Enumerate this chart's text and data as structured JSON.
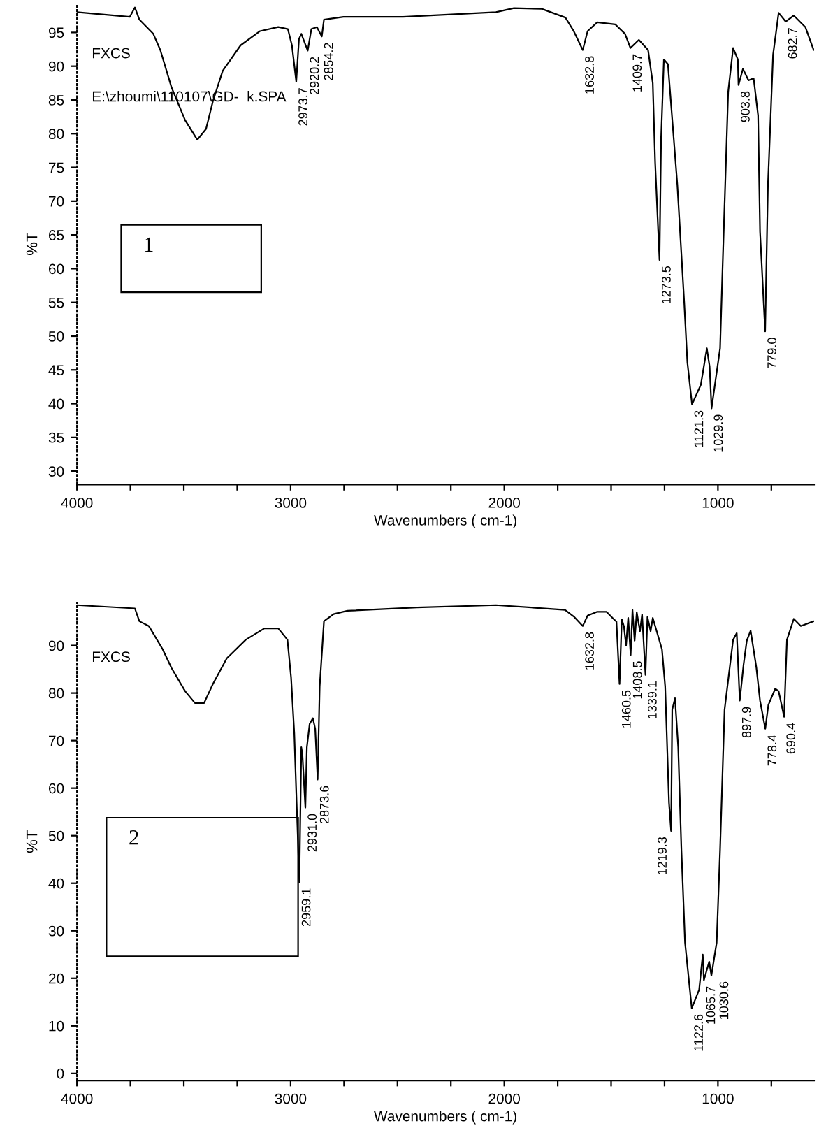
{
  "chart_data": [
    {
      "type": "line",
      "xlabel": "Wavenumbers ( cm-1)",
      "ylabel": "%T",
      "xlim": [
        4000,
        550
      ],
      "ylim": [
        28,
        99.3
      ],
      "xticks": [
        4000,
        {
          "value": 3750,
          "label": null
        },
        {
          "value": 3500,
          "label": null
        },
        {
          "value": 3250,
          "label": null
        },
        3000,
        {
          "value": 2750,
          "label": null
        },
        {
          "value": 2500,
          "label": null
        },
        {
          "value": 2250,
          "label": null
        },
        2000,
        {
          "value": 1750,
          "label": null
        },
        {
          "value": 1500,
          "label": null
        },
        {
          "value": 1250,
          "label": null
        },
        1000,
        {
          "value": 750,
          "label": null
        }
      ],
      "yticks": [
        30,
        35,
        40,
        45,
        50,
        55,
        60,
        65,
        70,
        75,
        80,
        85,
        90,
        95
      ],
      "grid": false,
      "legend": false,
      "series": [
        {
          "color": "#000000",
          "x": [
            4000,
            3753,
            3729,
            3708,
            3643,
            3610,
            3558,
            3494,
            3437,
            3396,
            3364,
            3318,
            3234,
            3143,
            3058,
            3013,
            2994,
            2973.7,
            2961,
            2950,
            2920.2,
            2903,
            2877,
            2854.2,
            2844,
            2753,
            2474,
            2039,
            1955,
            1825,
            1714,
            1675,
            1632.8,
            1610,
            1565,
            1481,
            1435,
            1409.7,
            1370,
            1327,
            1305,
            1294,
            1273.5,
            1266,
            1253,
            1234,
            1190,
            1158,
            1143,
            1121.3,
            1080,
            1052,
            1039,
            1029.9,
            990,
            973,
            952,
            929,
            907,
            903.8,
            883,
            857,
            833,
            812,
            803,
            779.0,
            766,
            742,
            716,
            682.7,
            645,
            591,
            552
          ],
          "values": [
            98.0,
            97.3,
            98.7,
            96.9,
            94.8,
            92.4,
            86.9,
            82.0,
            79.1,
            80.7,
            84.8,
            89.3,
            93.1,
            95.2,
            95.8,
            95.5,
            93.1,
            87.7,
            94.0,
            94.8,
            92.3,
            95.5,
            95.8,
            94.4,
            96.9,
            97.3,
            97.3,
            98.0,
            98.6,
            98.5,
            97.2,
            95.2,
            92.4,
            95.2,
            96.5,
            96.2,
            94.8,
            92.7,
            93.9,
            92.4,
            87.5,
            75.8,
            61.3,
            79.3,
            91.0,
            90.3,
            72.4,
            55.1,
            46.1,
            39.9,
            42.8,
            48.2,
            45.5,
            39.3,
            48.2,
            65.5,
            86.2,
            92.7,
            91.0,
            87.2,
            89.6,
            87.9,
            88.2,
            82.7,
            65.5,
            50.7,
            72.4,
            91.7,
            97.9,
            96.6,
            97.5,
            95.8,
            92.4
          ]
        }
      ],
      "annotations": [
        "FXCS",
        "E:\\zhoumi\\110107\\GD-  k.SPA",
        "1",
        {
          "text": "2973.7",
          "x": 2973.7,
          "y": 87.7
        },
        {
          "text": "2920.2",
          "x": 2920.2,
          "y": 92.3
        },
        {
          "text": "2854.2",
          "x": 2854.2,
          "y": 94.4
        },
        {
          "text": "1632.8",
          "x": 1632.8,
          "y": 92.4
        },
        {
          "text": "1409.7",
          "x": 1409.7,
          "y": 92.7
        },
        {
          "text": "1273.5",
          "x": 1273.5,
          "y": 61.3
        },
        {
          "text": "1121.3",
          "x": 1121.3,
          "y": 39.9
        },
        {
          "text": "1029.9",
          "x": 1029.9,
          "y": 39.3
        },
        {
          "text": "903.8",
          "x": 903.8,
          "y": 87.2
        },
        {
          "text": "779.0",
          "x": 779.0,
          "y": 50.7
        },
        {
          "text": "682.7",
          "x": 682.7,
          "y": 96.6
        }
      ]
    },
    {
      "type": "line",
      "xlabel": "Wavenumbers ( cm-1)",
      "ylabel": "%T",
      "xlim": [
        4000,
        550
      ],
      "ylim": [
        -1.5,
        99
      ],
      "xticks": [
        4000,
        {
          "value": 3750,
          "label": null
        },
        {
          "value": 3500,
          "label": null
        },
        {
          "value": 3250,
          "label": null
        },
        3000,
        {
          "value": 2750,
          "label": null
        },
        {
          "value": 2500,
          "label": null
        },
        {
          "value": 2250,
          "label": null
        },
        2000,
        {
          "value": 1750,
          "label": null
        },
        {
          "value": 1500,
          "label": null
        },
        {
          "value": 1250,
          "label": null
        },
        1000,
        {
          "value": 750,
          "label": null
        }
      ],
      "yticks": [
        0,
        10,
        20,
        30,
        40,
        50,
        60,
        70,
        80,
        90
      ],
      "grid": false,
      "legend": false,
      "series": [
        {
          "color": "#000000",
          "x": [
            4000,
            3729,
            3708,
            3664,
            3599,
            3558,
            3494,
            3448,
            3405,
            3364,
            3299,
            3210,
            3123,
            3058,
            3015,
            2998,
            2983,
            2972,
            2959.1,
            2950,
            2945,
            2931.0,
            2924,
            2911,
            2896,
            2885,
            2873.6,
            2864,
            2844,
            2799,
            2734,
            2409,
            2039,
            1716,
            1675,
            1632.8,
            1610,
            1565,
            1522,
            1489,
            1475,
            1460.5,
            1450,
            1440,
            1430,
            1420,
            1408.5,
            1400,
            1390,
            1380,
            1365,
            1355,
            1339.1,
            1330,
            1315,
            1305,
            1290,
            1262,
            1247,
            1229,
            1219.3,
            1214,
            1201,
            1186,
            1171,
            1154,
            1122.6,
            1088,
            1071,
            1065.7,
            1041,
            1030.6,
            1006,
            990,
            969,
            929,
            912,
            897.9,
            880,
            865,
            847,
            820,
            803,
            778.4,
            764,
            732,
            716,
            690.4,
            677,
            645,
            612,
            552
          ],
          "values": [
            98.5,
            97.8,
            95.1,
            94.1,
            89.2,
            85.3,
            80.4,
            77.9,
            77.9,
            81.9,
            87.3,
            91.2,
            93.6,
            93.6,
            91.2,
            83.3,
            71.6,
            56.9,
            40.2,
            68.6,
            67.2,
            55.9,
            68.6,
            73.5,
            74.7,
            72.5,
            61.8,
            81.4,
            95.1,
            96.6,
            97.3,
            98.0,
            98.5,
            97.5,
            96.1,
            94.1,
            96.3,
            97.1,
            97.1,
            95.6,
            95.0,
            81.9,
            95.5,
            94.0,
            90.0,
            95.8,
            88.0,
            97.5,
            91.0,
            97.0,
            93.0,
            96.5,
            83.8,
            96.0,
            93.0,
            95.8,
            93.5,
            89.2,
            81.4,
            56.9,
            51.0,
            76.5,
            78.9,
            68.6,
            47.1,
            27.5,
            13.7,
            17.6,
            25.0,
            19.6,
            23.5,
            20.6,
            27.5,
            47.1,
            76.5,
            91.2,
            92.6,
            78.4,
            86.0,
            91.0,
            93.1,
            85.3,
            78.4,
            72.5,
            77.5,
            80.9,
            80.4,
            75.0,
            91.2,
            95.6,
            94.1,
            95.1
          ]
        }
      ],
      "annotations": [
        "FXCS",
        "2",
        {
          "text": "2959.1",
          "x": 2959.1,
          "y": 40.2
        },
        {
          "text": "2931.0",
          "x": 2931.0,
          "y": 55.9
        },
        {
          "text": "2873.6",
          "x": 2873.6,
          "y": 61.8
        },
        {
          "text": "1632.8",
          "x": 1632.8,
          "y": 94.1
        },
        {
          "text": "1460.5",
          "x": 1460.5,
          "y": 81.9
        },
        {
          "text": "1408.5",
          "x": 1408.5,
          "y": 88.0
        },
        {
          "text": "1339.1",
          "x": 1339.1,
          "y": 83.8
        },
        {
          "text": "1219.3",
          "x": 1219.3,
          "y": 51.0
        },
        {
          "text": "1122.6",
          "x": 1122.6,
          "y": 13.7
        },
        {
          "text": "1065.7",
          "x": 1065.7,
          "y": 19.6
        },
        {
          "text": "1030.6",
          "x": 1030.6,
          "y": 20.6
        },
        {
          "text": "897.9",
          "x": 897.9,
          "y": 78.4
        },
        {
          "text": "778.4",
          "x": 778.4,
          "y": 72.5
        },
        {
          "text": "690.4",
          "x": 690.4,
          "y": 75.0
        }
      ]
    }
  ]
}
